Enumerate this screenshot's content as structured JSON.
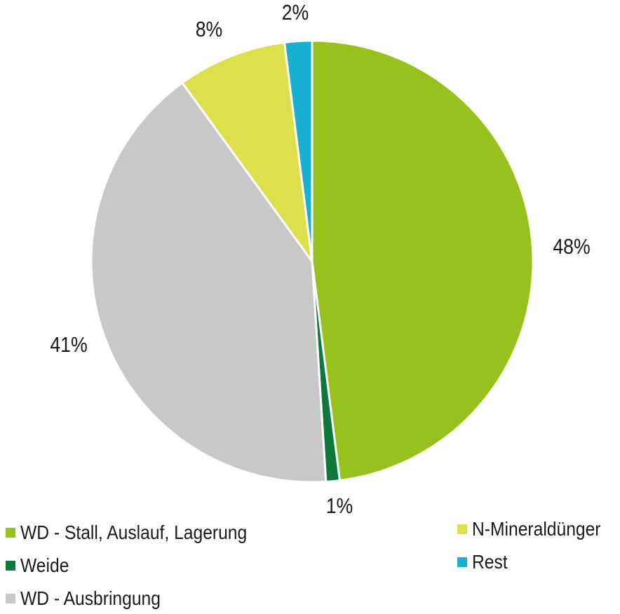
{
  "chart_data": {
    "type": "pie",
    "start_angle": "12 o'clock, clockwise",
    "legend_position": "bottom",
    "slices": [
      {
        "name": "WD - Stall, Auslauf, Lagerung",
        "value": 48,
        "label": "48%",
        "color": "#97c21e"
      },
      {
        "name": "Weide",
        "value": 1,
        "label": "1%",
        "color": "#0b7a3b"
      },
      {
        "name": "WD - Ausbringung",
        "value": 41,
        "label": "41%",
        "color": "#c8c8c8"
      },
      {
        "name": "N-Mineraldünger",
        "value": 8,
        "label": "8%",
        "color": "#dde04c"
      },
      {
        "name": "Rest",
        "value": 2,
        "label": "2%",
        "color": "#1ab0d1"
      }
    ]
  }
}
